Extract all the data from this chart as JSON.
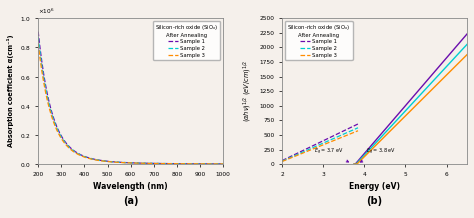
{
  "panel_a": {
    "xlabel": "Wavelength (nm)",
    "ylabel": "Absorption coefficient α(cm⁻¹)",
    "xlim": [
      200,
      1000
    ],
    "ylim": [
      0,
      1000000.0
    ],
    "yticks": [
      0,
      200000.0,
      400000.0,
      600000.0,
      800000.0,
      1000000.0
    ],
    "xticks": [
      200,
      300,
      400,
      500,
      600,
      700,
      800,
      900,
      1000
    ],
    "legend_title": "Silicon-rich oxide (SiO$_x$)\nAfter Annealing",
    "samples": {
      "Sample 1": {
        "color": "#6A0DAD",
        "linestyle": "--"
      },
      "Sample 2": {
        "color": "#00CED1",
        "linestyle": "--"
      },
      "Sample 3": {
        "color": "#FF8C00",
        "linestyle": "--"
      }
    },
    "label": "(a)"
  },
  "panel_b": {
    "xlabel": "Energy (eV)",
    "ylabel": "(αhν)$^{1/2}$ (eV/cm)$^{1/2}$",
    "xlim": [
      2,
      6.5
    ],
    "ylim": [
      0,
      2500
    ],
    "yticks": [
      0,
      250,
      500,
      750,
      1000,
      1250,
      1500,
      1750,
      2000,
      2250,
      2500
    ],
    "xticks": [
      2,
      3,
      4,
      5,
      6
    ],
    "legend_title": "Silicon-rich oxide (SiO$_x$)\nAfter Annealing",
    "samples": {
      "Sample 1": {
        "color": "#6A0DAD",
        "dash_end": 3.85,
        "solid_start": 3.75
      },
      "Sample 2": {
        "color": "#00CED1",
        "dash_end": 3.85,
        "solid_start": 3.75
      },
      "Sample 3": {
        "color": "#FF8C00",
        "dash_end": 3.85,
        "solid_start": 3.75
      }
    },
    "Eg1": 3.7,
    "Eg2": 3.8,
    "label": "(b)"
  },
  "bg_color": "#f5f0eb"
}
